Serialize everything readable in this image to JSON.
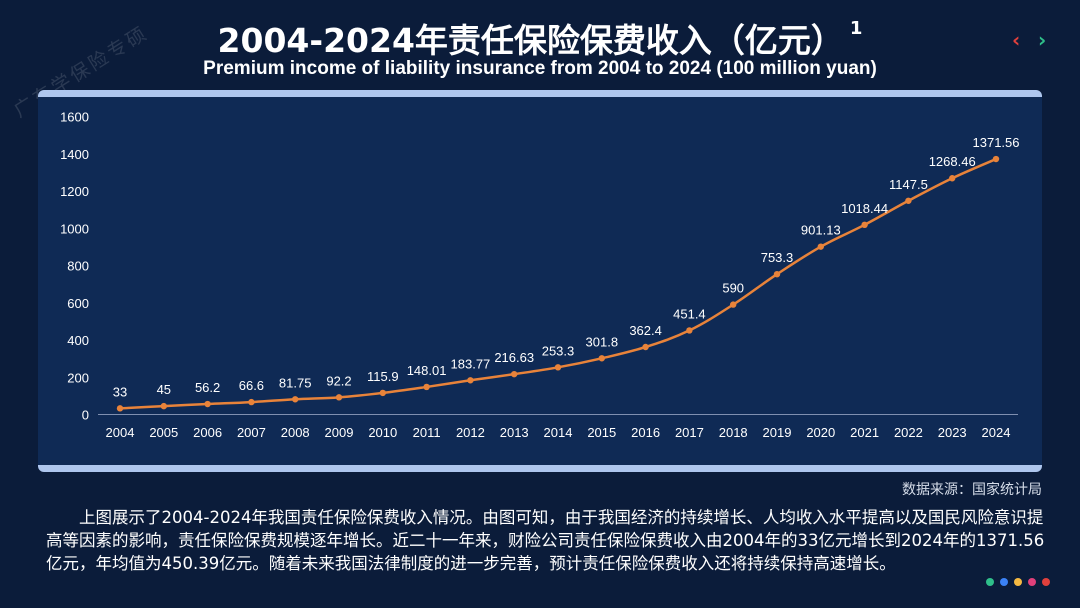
{
  "header": {
    "title": "2004-2024年责任保险保费收入（亿元）",
    "title_sup": "1",
    "subtitle": "Premium income of liability insurance from 2004 to 2024 (100 million yuan)",
    "watermark": "广东学保险专硕",
    "nav_prev": "‹",
    "nav_next": "›"
  },
  "chart_data": {
    "type": "line",
    "title": "2004-2024年责任保险保费收入（亿元）",
    "xlabel": "",
    "ylabel": "",
    "categories": [
      "2004",
      "2005",
      "2006",
      "2007",
      "2008",
      "2009",
      "2010",
      "2011",
      "2012",
      "2013",
      "2014",
      "2015",
      "2016",
      "2017",
      "2018",
      "2019",
      "2020",
      "2021",
      "2022",
      "2023",
      "2024"
    ],
    "series": [
      {
        "name": "责任保险保费收入",
        "values": [
          33,
          45,
          56.2,
          66.6,
          81.75,
          92.2,
          115.9,
          148.01,
          183.77,
          216.63,
          253.3,
          301.8,
          362.4,
          451.4,
          590,
          753.3,
          901.13,
          1018.44,
          1147.5,
          1268.46,
          1371.56
        ]
      }
    ],
    "data_labels": [
      "33",
      "45",
      "56.2",
      "66.6",
      "81.75",
      "92.2",
      "115.9",
      "148.01",
      "183.77",
      "216.63",
      "253.3",
      "301.8",
      "362.4",
      "451.4",
      "590",
      "753.3",
      "901.13",
      "1018.44",
      "1147.5",
      "1268.46",
      "1371.56"
    ],
    "ylim": [
      0,
      1600
    ],
    "yticks": [
      0,
      200,
      400,
      600,
      800,
      1000,
      1200,
      1400,
      1600
    ],
    "grid": false,
    "line_color": "#e8833a"
  },
  "source": "数据来源：国家统计局",
  "paragraph": "上图展示了2004-2024年我国责任保险保费收入情况。由图可知，由于我国经济的持续增长、人均收入水平提高以及国民风险意识提高等因素的影响，责任保险保费规模逐年增长。近二十一年来，财险公司责任保险保费收入由2004年的33亿元增长到2024年的1371.56亿元，年均值为450.39亿元。随着未来我国法律制度的进一步完善，预计责任保险保费收入还将持续保持高速增长。",
  "decor_dots": [
    "#2fbf8a",
    "#3b82f6",
    "#f5b942",
    "#e0407a",
    "#e0403c"
  ]
}
